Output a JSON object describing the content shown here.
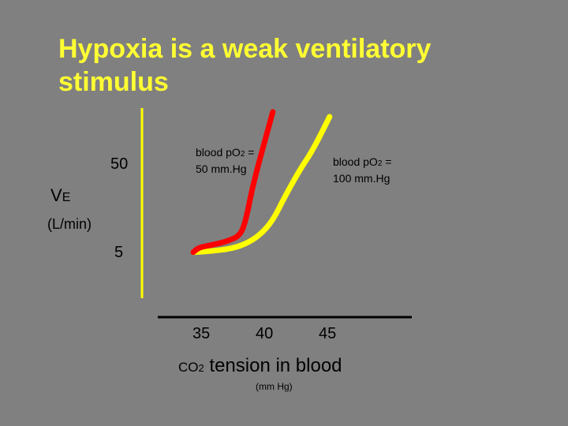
{
  "colors": {
    "background": "#808080",
    "title": "#ffff33",
    "text": "#000000",
    "axis": "#ffff00",
    "po2_50_curve": "#ff0000",
    "po2_100_curve": "#ffff00"
  },
  "chart_data": {
    "type": "line",
    "title": [
      "Hypoxia is a weak ventilatory",
      "stimulus"
    ],
    "ylabel": {
      "main": "V",
      "sub": "E",
      "unit": "(L/min)"
    },
    "y_ticks": [
      "50",
      "5"
    ],
    "x_ticks": [
      "35",
      "40",
      "45"
    ],
    "xlabel": {
      "prefix": "CO",
      "sub": "2",
      "rest": " tension in blood",
      "unit": "(mm Hg)"
    },
    "xlim": [
      30,
      50
    ],
    "ylim": [
      0,
      60
    ],
    "grid": false,
    "legend": "none",
    "series": [
      {
        "name": "blood pO2 = 50 mm.Hg",
        "label": {
          "pre": "blood pO",
          "sub": "2",
          "post": " =",
          "line2": "50 mm.Hg"
        },
        "color": "#ff0000",
        "x": [
          30.0,
          30.6,
          32.0,
          33.6,
          35.0,
          35.6,
          36.2,
          37.0,
          38.4
        ],
        "y": [
          4.0,
          6.0,
          7.0,
          8.5,
          11.0,
          18.0,
          30.0,
          42.0,
          62.0
        ]
      },
      {
        "name": "blood pO2 = 100 mm.Hg",
        "label": {
          "pre": "blood pO",
          "sub": "2",
          "post": " =",
          "line2": "100 mm.Hg"
        },
        "color": "#ffff00",
        "x": [
          30.0,
          32.0,
          34.0,
          35.6,
          37.0,
          38.4,
          39.8,
          41.4,
          42.6,
          44.4
        ],
        "y": [
          4.0,
          4.5,
          5.5,
          7.5,
          11.0,
          17.0,
          28.0,
          39.0,
          46.0,
          60.0
        ]
      }
    ]
  }
}
